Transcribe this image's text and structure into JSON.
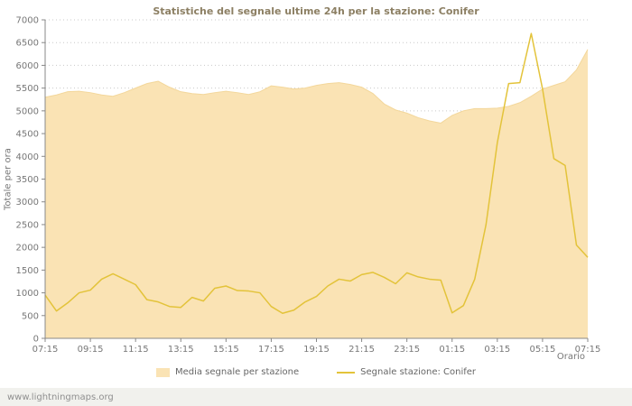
{
  "watermark": "www.lightningmaps.org",
  "chart_data": {
    "type": "area",
    "title": "Statistiche del segnale ultime 24h per la stazione: Conifer",
    "xlabel": "Orario",
    "ylabel": "Totale per ora",
    "ylim": [
      0,
      7000
    ],
    "y_tick_step": 500,
    "y_ticks": [
      0,
      500,
      1000,
      1500,
      2000,
      2500,
      3000,
      3500,
      4000,
      4500,
      5000,
      5500,
      6000,
      6500,
      7000
    ],
    "x_tick_labels": [
      "07:15",
      "09:15",
      "11:15",
      "13:15",
      "15:15",
      "17:15",
      "19:15",
      "21:15",
      "23:15",
      "01:15",
      "03:15",
      "05:15",
      "07:15"
    ],
    "grid": "horizontal-dotted",
    "legend_position": "bottom",
    "sample_interval_minutes": 30,
    "series": [
      {
        "name": "Media segnale per stazione",
        "type": "area",
        "color": "#fae3b4",
        "edge_color": "#f3d79b",
        "values": [
          5300,
          5350,
          5420,
          5430,
          5400,
          5350,
          5320,
          5400,
          5500,
          5600,
          5650,
          5520,
          5420,
          5380,
          5360,
          5400,
          5430,
          5400,
          5360,
          5420,
          5550,
          5520,
          5480,
          5500,
          5560,
          5600,
          5620,
          5580,
          5520,
          5380,
          5150,
          5020,
          4950,
          4850,
          4780,
          4730,
          4900,
          5000,
          5050,
          5050,
          5060,
          5100,
          5180,
          5320,
          5480,
          5560,
          5640,
          5900,
          6350
        ]
      },
      {
        "name": "Segnale stazione: Conifer",
        "type": "line",
        "color": "#e3c33a",
        "values": [
          950,
          600,
          780,
          1000,
          1060,
          1300,
          1420,
          1300,
          1180,
          850,
          800,
          700,
          680,
          900,
          820,
          1100,
          1150,
          1050,
          1040,
          1000,
          700,
          550,
          620,
          800,
          920,
          1150,
          1300,
          1260,
          1400,
          1450,
          1340,
          1200,
          1440,
          1350,
          1300,
          1280,
          560,
          720,
          1300,
          2500,
          4300,
          5600,
          5620,
          6700,
          5480,
          3950,
          3800,
          2050,
          1780
        ]
      }
    ]
  }
}
